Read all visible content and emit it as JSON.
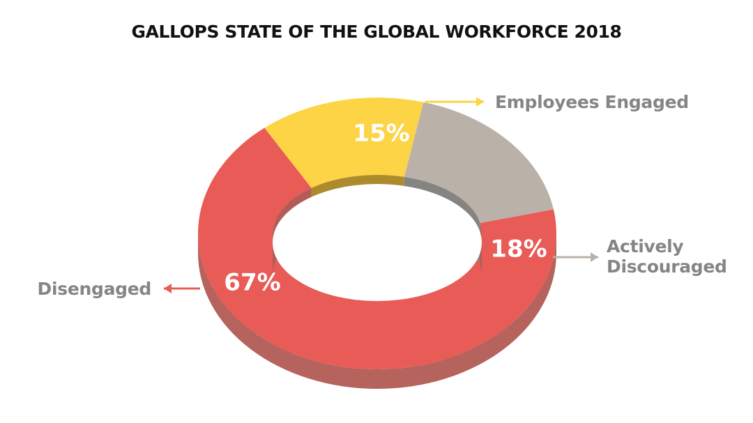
{
  "chart_data": {
    "type": "pie",
    "style": "3d-donut",
    "title": "GALLOPS STATE OF THE GLOBAL WORKFORCE 2018",
    "slices": [
      {
        "label": "Employees Engaged",
        "label_lines": [
          "Employees Engaged"
        ],
        "value": 15,
        "display": "15%",
        "color": "#fdd446",
        "shade_color": "#b08d2d",
        "inner_color": "#ad8b2c"
      },
      {
        "label": "Actively Discouraged",
        "label_lines": [
          "Actively",
          "Discouraged"
        ],
        "value": 18,
        "display": "18%",
        "color": "#bab1a9",
        "shade_color": "#8a8784",
        "inner_color": "#858482"
      },
      {
        "label": "Disengaged",
        "label_lines": [
          "Disengaged"
        ],
        "value": 67,
        "display": "67%",
        "color": "#e85b56",
        "shade_color": "#b6625d",
        "inner_color": "#b35b57"
      }
    ],
    "label_color": "#858585",
    "legend": "callouts-with-arrows"
  }
}
